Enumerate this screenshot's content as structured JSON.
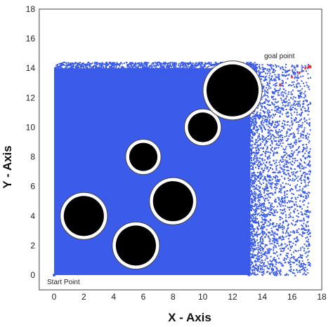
{
  "chart_data": {
    "type": "scatter",
    "title": "",
    "xlabel": "X - Axis",
    "ylabel": "Y - Axis",
    "xlim": [
      -1,
      18
    ],
    "ylim": [
      -1,
      18
    ],
    "x_ticks": [
      0,
      2,
      4,
      6,
      8,
      10,
      12,
      14,
      16,
      18
    ],
    "y_ticks": [
      0,
      2,
      4,
      6,
      8,
      10,
      12,
      14,
      16,
      18
    ],
    "grid": false,
    "series": [
      {
        "color": "#3b5bea",
        "marker": "dot",
        "region": {
          "x": [
            0,
            17.2
          ],
          "y": [
            0,
            14.3
          ]
        },
        "description": "dense random samples"
      },
      {
        "color": "#e53935",
        "marker": "dot",
        "points": [
          [
            15.2,
            12.9
          ],
          [
            16.0,
            13.4
          ],
          [
            16.5,
            13.7
          ],
          [
            16.9,
            14.0
          ],
          [
            17.1,
            14.1
          ]
        ]
      }
    ],
    "obstacles": [
      {
        "cx": 2.0,
        "cy": 4.0,
        "r": 1.35
      },
      {
        "cx": 5.5,
        "cy": 2.0,
        "r": 1.35
      },
      {
        "cx": 6.0,
        "cy": 8.0,
        "r": 0.95
      },
      {
        "cx": 8.0,
        "cy": 5.0,
        "r": 1.35
      },
      {
        "cx": 10.0,
        "cy": 10.0,
        "r": 1.0
      },
      {
        "cx": 12.0,
        "cy": 12.5,
        "r": 1.75
      }
    ],
    "start": {
      "x": 0,
      "y": 0,
      "label": "Start Point"
    },
    "goal": {
      "x": 17.2,
      "y": 14.1,
      "label": "goal point"
    }
  }
}
